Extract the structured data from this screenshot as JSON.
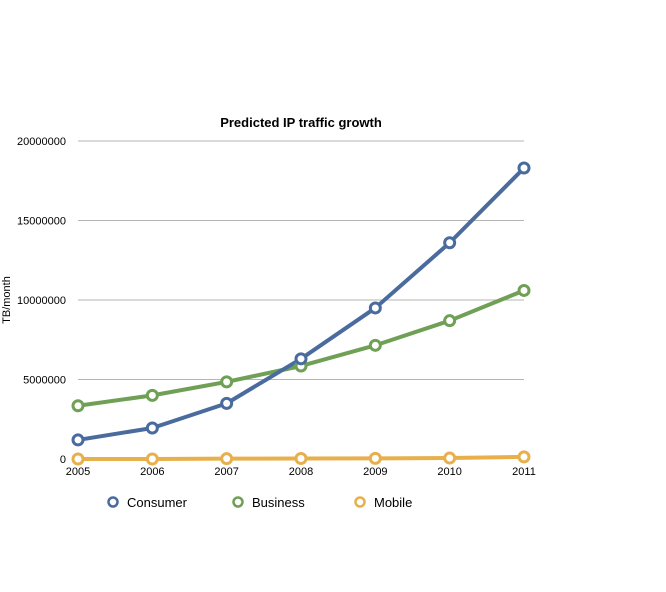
{
  "chart_data": {
    "type": "line",
    "title": "Predicted IP traffic growth",
    "xlabel": "",
    "ylabel": "TB/month",
    "categories": [
      "2005",
      "2006",
      "2007",
      "2008",
      "2009",
      "2010",
      "2011"
    ],
    "ylim": [
      0,
      20000000
    ],
    "yticks": [
      "0",
      "5000000",
      "10000000",
      "15000000",
      "20000000"
    ],
    "grid": true,
    "legend_position": "bottom",
    "series": [
      {
        "name": "Consumer",
        "color": "#4a6b9d",
        "values": [
          1200000,
          1950000,
          3500000,
          6300000,
          9500000,
          13600000,
          18300000
        ]
      },
      {
        "name": "Business",
        "color": "#6fa055",
        "values": [
          3350000,
          4000000,
          4850000,
          5850000,
          7150000,
          8700000,
          10600000
        ]
      },
      {
        "name": "Mobile",
        "color": "#e8b04c",
        "values": [
          0,
          0,
          20000,
          30000,
          40000,
          60000,
          130000
        ]
      }
    ]
  }
}
